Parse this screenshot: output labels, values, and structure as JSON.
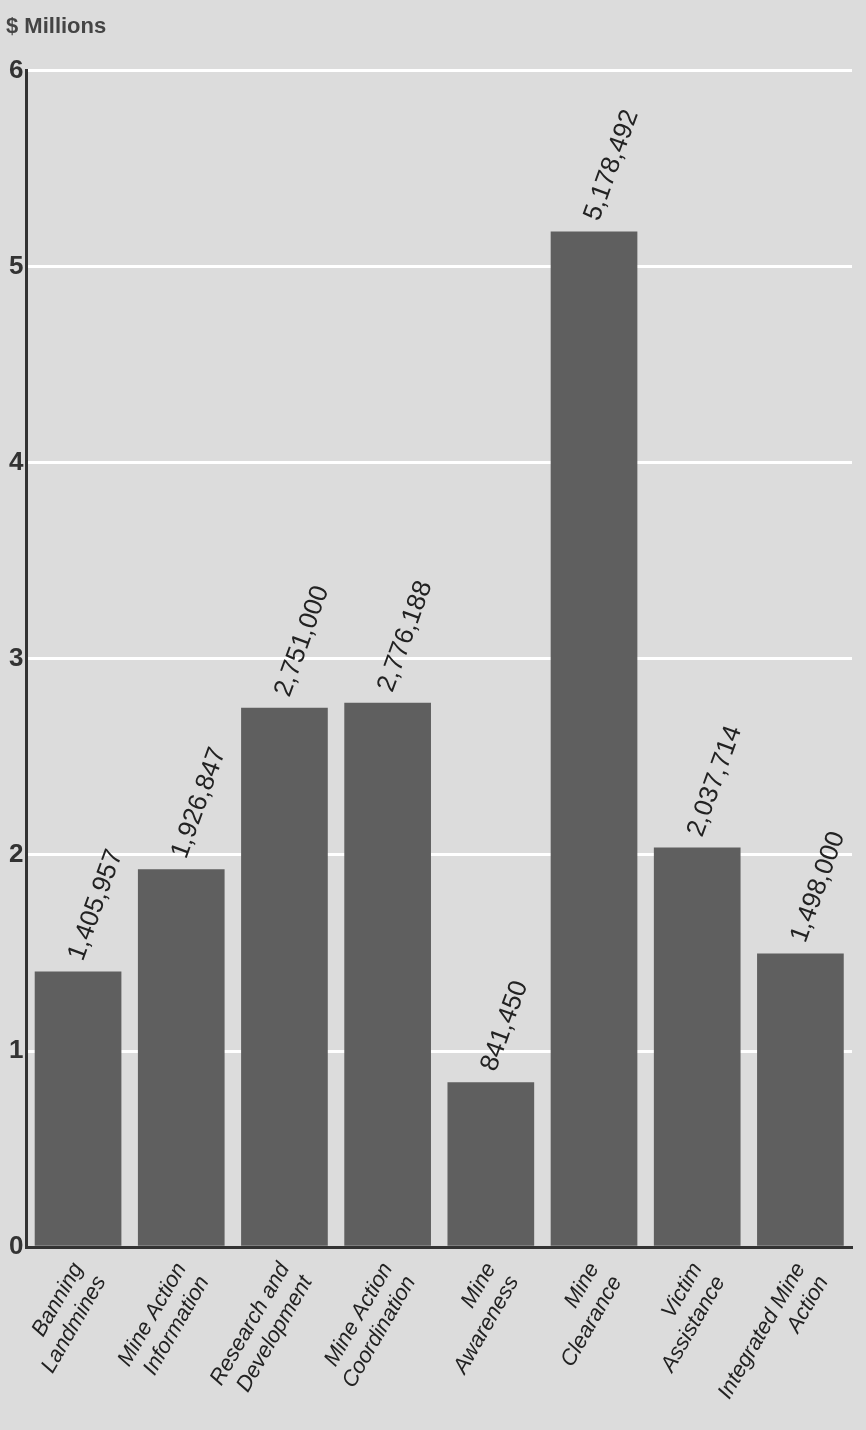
{
  "chart_data": {
    "type": "bar",
    "ylabel": "$ Millions",
    "categories": [
      "Banning Landmines",
      "Mine Action Information",
      "Research and Development",
      "Mine Action Coordination",
      "Mine Awareness",
      "Mine Clearance",
      "Victim Assistance",
      "Integrated Mine Action"
    ],
    "values": [
      1.405957,
      1.926847,
      2.751,
      2.776188,
      0.84145,
      5.178492,
      2.037714,
      1.498
    ],
    "value_labels": [
      "1,405,957",
      "1,926,847",
      "2,751,000",
      "2,776,188",
      "841,450",
      "5,178,492",
      "2,037,714",
      "1,498,000"
    ],
    "color": "#5f5f5f",
    "ylim": [
      0,
      6
    ],
    "yticks": [
      0,
      1,
      2,
      3,
      4,
      5,
      6
    ],
    "grid": true,
    "data_labels": true
  }
}
